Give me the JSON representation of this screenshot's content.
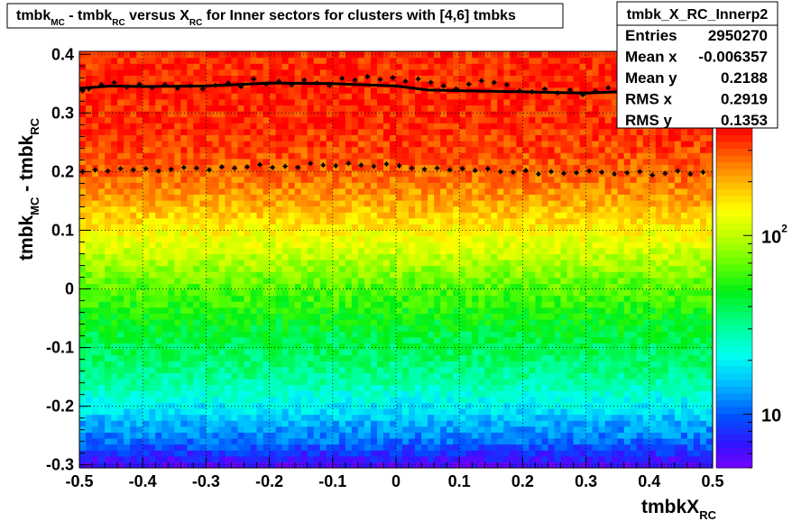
{
  "chart_data": {
    "type": "heatmap",
    "title": {
      "parts": [
        {
          "text": "tmbk"
        },
        {
          "text": "MC",
          "sub": true
        },
        {
          "text": " - tmbk"
        },
        {
          "text": "RC",
          "sub": true
        },
        {
          "text": " versus X"
        },
        {
          "text": "RC",
          "sub": true
        },
        {
          "text": " for Inner sectors for clusters with [4,6] tmbks"
        }
      ]
    },
    "xlabel": {
      "main": "tmbkX",
      "sub": "RC"
    },
    "ylabel": {
      "parts": [
        {
          "text": "tmbk"
        },
        {
          "text": "MC",
          "sub": true
        },
        {
          "text": " - tmbk"
        },
        {
          "text": "RC",
          "sub": true
        }
      ]
    },
    "xlim": [
      -0.5,
      0.5
    ],
    "ylim": [
      -0.305,
      0.405
    ],
    "x_ticks": [
      "-0.5",
      "-0.4",
      "-0.3",
      "-0.2",
      "-0.1",
      "0",
      "0.1",
      "0.2",
      "0.3",
      "0.4",
      "0.5"
    ],
    "y_ticks": [
      "-0.3",
      "-0.2",
      "-0.1",
      "0",
      "0.1",
      "0.2",
      "0.3",
      "0.4"
    ],
    "grid": true,
    "z_scale": "log",
    "z_range": [
      5,
      400
    ],
    "z_ticks": [
      {
        "value": 10,
        "base": "10",
        "exp": ""
      },
      {
        "value": 100,
        "base": "10",
        "exp": "2"
      }
    ],
    "density_profile": {
      "y": [
        -0.3,
        -0.28,
        -0.26,
        -0.24,
        -0.22,
        -0.2,
        -0.18,
        -0.16,
        -0.14,
        -0.12,
        -0.1,
        -0.08,
        -0.06,
        -0.04,
        -0.02,
        0,
        0.02,
        0.04,
        0.06,
        0.08,
        0.1,
        0.12,
        0.14,
        0.16,
        0.18,
        0.2,
        0.22,
        0.24,
        0.26,
        0.28,
        0.3,
        0.32,
        0.34,
        0.36,
        0.38,
        0.4
      ],
      "z": [
        6,
        8,
        11,
        13,
        16,
        20,
        24,
        29,
        33,
        37,
        40,
        43,
        47,
        52,
        60,
        66,
        75,
        88,
        105,
        125,
        145,
        170,
        200,
        225,
        255,
        280,
        300,
        320,
        335,
        345,
        350,
        355,
        360,
        360,
        355,
        345
      ]
    },
    "series": [
      {
        "type": "line",
        "x": [
          -0.5,
          -0.45,
          -0.4,
          -0.3,
          -0.2,
          -0.1,
          0,
          0.05,
          0.1,
          0.2,
          0.3,
          0.35,
          0.4,
          0.45,
          0.5
        ],
        "y": [
          0.342,
          0.346,
          0.345,
          0.346,
          0.351,
          0.35,
          0.346,
          0.339,
          0.338,
          0.336,
          0.334,
          0.336,
          0.337,
          0.337,
          0.339
        ]
      },
      {
        "type": "markers",
        "x": [
          -0.495,
          -0.485,
          -0.465,
          -0.445,
          -0.425,
          -0.405,
          -0.385,
          -0.365,
          -0.345,
          -0.325,
          -0.305,
          -0.285,
          -0.265,
          -0.245,
          -0.225,
          -0.205,
          -0.185,
          -0.165,
          -0.145,
          -0.125,
          -0.105,
          -0.085,
          -0.065,
          -0.045,
          -0.025,
          -0.005,
          0.015,
          0.035,
          0.055,
          0.075,
          0.095,
          0.115,
          0.135,
          0.155,
          0.175,
          0.195,
          0.215,
          0.235,
          0.255,
          0.275,
          0.295,
          0.315,
          0.335,
          0.355,
          0.375,
          0.395,
          0.415,
          0.435,
          0.455,
          0.475,
          0.495
        ],
        "y": [
          0.338,
          0.341,
          0.348,
          0.352,
          0.344,
          0.349,
          0.343,
          0.348,
          0.342,
          0.346,
          0.341,
          0.347,
          0.351,
          0.345,
          0.358,
          0.349,
          0.354,
          0.348,
          0.356,
          0.351,
          0.347,
          0.359,
          0.356,
          0.362,
          0.357,
          0.36,
          0.354,
          0.358,
          0.352,
          0.346,
          0.341,
          0.349,
          0.355,
          0.352,
          0.348,
          0.338,
          0.336,
          0.341,
          0.334,
          0.339,
          0.331,
          0.337,
          0.343,
          0.333,
          0.336,
          0.329,
          0.334,
          0.331,
          0.336,
          0.333,
          0.338
        ]
      },
      {
        "type": "markers",
        "x": [
          -0.495,
          -0.475,
          -0.455,
          -0.435,
          -0.415,
          -0.395,
          -0.375,
          -0.355,
          -0.335,
          -0.315,
          -0.295,
          -0.275,
          -0.255,
          -0.235,
          -0.215,
          -0.195,
          -0.175,
          -0.155,
          -0.135,
          -0.115,
          -0.095,
          -0.075,
          -0.055,
          -0.035,
          -0.015,
          0.005,
          0.025,
          0.045,
          0.065,
          0.085,
          0.105,
          0.125,
          0.145,
          0.165,
          0.185,
          0.205,
          0.225,
          0.245,
          0.265,
          0.285,
          0.305,
          0.325,
          0.345,
          0.365,
          0.385,
          0.405,
          0.425,
          0.445,
          0.465,
          0.485
        ],
        "y": [
          0.2,
          0.203,
          0.201,
          0.205,
          0.203,
          0.205,
          0.201,
          0.204,
          0.207,
          0.206,
          0.203,
          0.208,
          0.206,
          0.208,
          0.212,
          0.207,
          0.209,
          0.207,
          0.214,
          0.211,
          0.21,
          0.214,
          0.211,
          0.209,
          0.213,
          0.21,
          0.206,
          0.204,
          0.206,
          0.203,
          0.205,
          0.202,
          0.205,
          0.2,
          0.199,
          0.202,
          0.196,
          0.2,
          0.197,
          0.198,
          0.201,
          0.199,
          0.196,
          0.198,
          0.2,
          0.194,
          0.197,
          0.201,
          0.196,
          0.199
        ]
      }
    ]
  },
  "stats": {
    "title": "tmbk_X_RC_Innerp2",
    "rows": [
      {
        "label": "Entries",
        "value": "2950270"
      },
      {
        "label": "Mean x",
        "value": "-0.006357"
      },
      {
        "label": "Mean y",
        "value": "0.2188"
      },
      {
        "label": "RMS x",
        "value": "0.2919"
      },
      {
        "label": "RMS y",
        "value": "0.1353"
      }
    ]
  }
}
